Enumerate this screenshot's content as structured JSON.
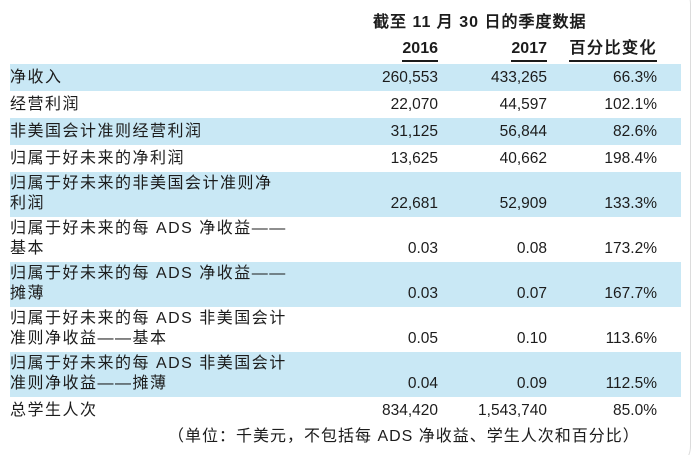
{
  "header": {
    "title": "截至 11 月 30 日的季度数据",
    "columns": [
      "2016",
      "2017",
      "百分比变化"
    ]
  },
  "rows": [
    {
      "label_lines": [
        "净收入"
      ],
      "v2016": "260,553",
      "v2017": "433,265",
      "pct": "66.3%",
      "highlight": true
    },
    {
      "label_lines": [
        "经营利润"
      ],
      "v2016": "22,070",
      "v2017": "44,597",
      "pct": "102.1%",
      "highlight": false
    },
    {
      "label_lines": [
        "非美国会计准则经营利润"
      ],
      "v2016": "31,125",
      "v2017": "56,844",
      "pct": "82.6%",
      "highlight": true
    },
    {
      "label_lines": [
        "归属于好未来的净利润"
      ],
      "v2016": "13,625",
      "v2017": "40,662",
      "pct": "198.4%",
      "highlight": false
    },
    {
      "label_lines": [
        "归属于好未来的非美国会计准则净",
        "利润"
      ],
      "v2016": "22,681",
      "v2017": "52,909",
      "pct": "133.3%",
      "highlight": true
    },
    {
      "label_lines": [
        "归属于好未来的每 ADS 净收益——",
        "基本"
      ],
      "v2016": "0.03",
      "v2017": "0.08",
      "pct": "173.2%",
      "highlight": false
    },
    {
      "label_lines": [
        "归属于好未来的每 ADS 净收益——",
        "摊薄"
      ],
      "v2016": "0.03",
      "v2017": "0.07",
      "pct": "167.7%",
      "highlight": true
    },
    {
      "label_lines": [
        "归属于好未来的每 ADS 非美国会计",
        "准则净收益——基本"
      ],
      "v2016": "0.05",
      "v2017": "0.10",
      "pct": "113.6%",
      "highlight": false
    },
    {
      "label_lines": [
        "归属于好未来的每 ADS 非美国会计",
        "准则净收益——摊薄"
      ],
      "v2016": "0.04",
      "v2017": "0.09",
      "pct": "112.5%",
      "highlight": true
    },
    {
      "label_lines": [
        "总学生人次"
      ],
      "v2016": "834,420",
      "v2017": "1,543,740",
      "pct": "85.0%",
      "highlight": false
    }
  ],
  "footer": {
    "note": "（单位：千美元，不包括每 ADS 净收益、学生人次和百分比）"
  },
  "colors": {
    "row_highlight": "#c9e8f5",
    "text": "#1c1c1c",
    "card_edge": "#dcdcdc"
  }
}
